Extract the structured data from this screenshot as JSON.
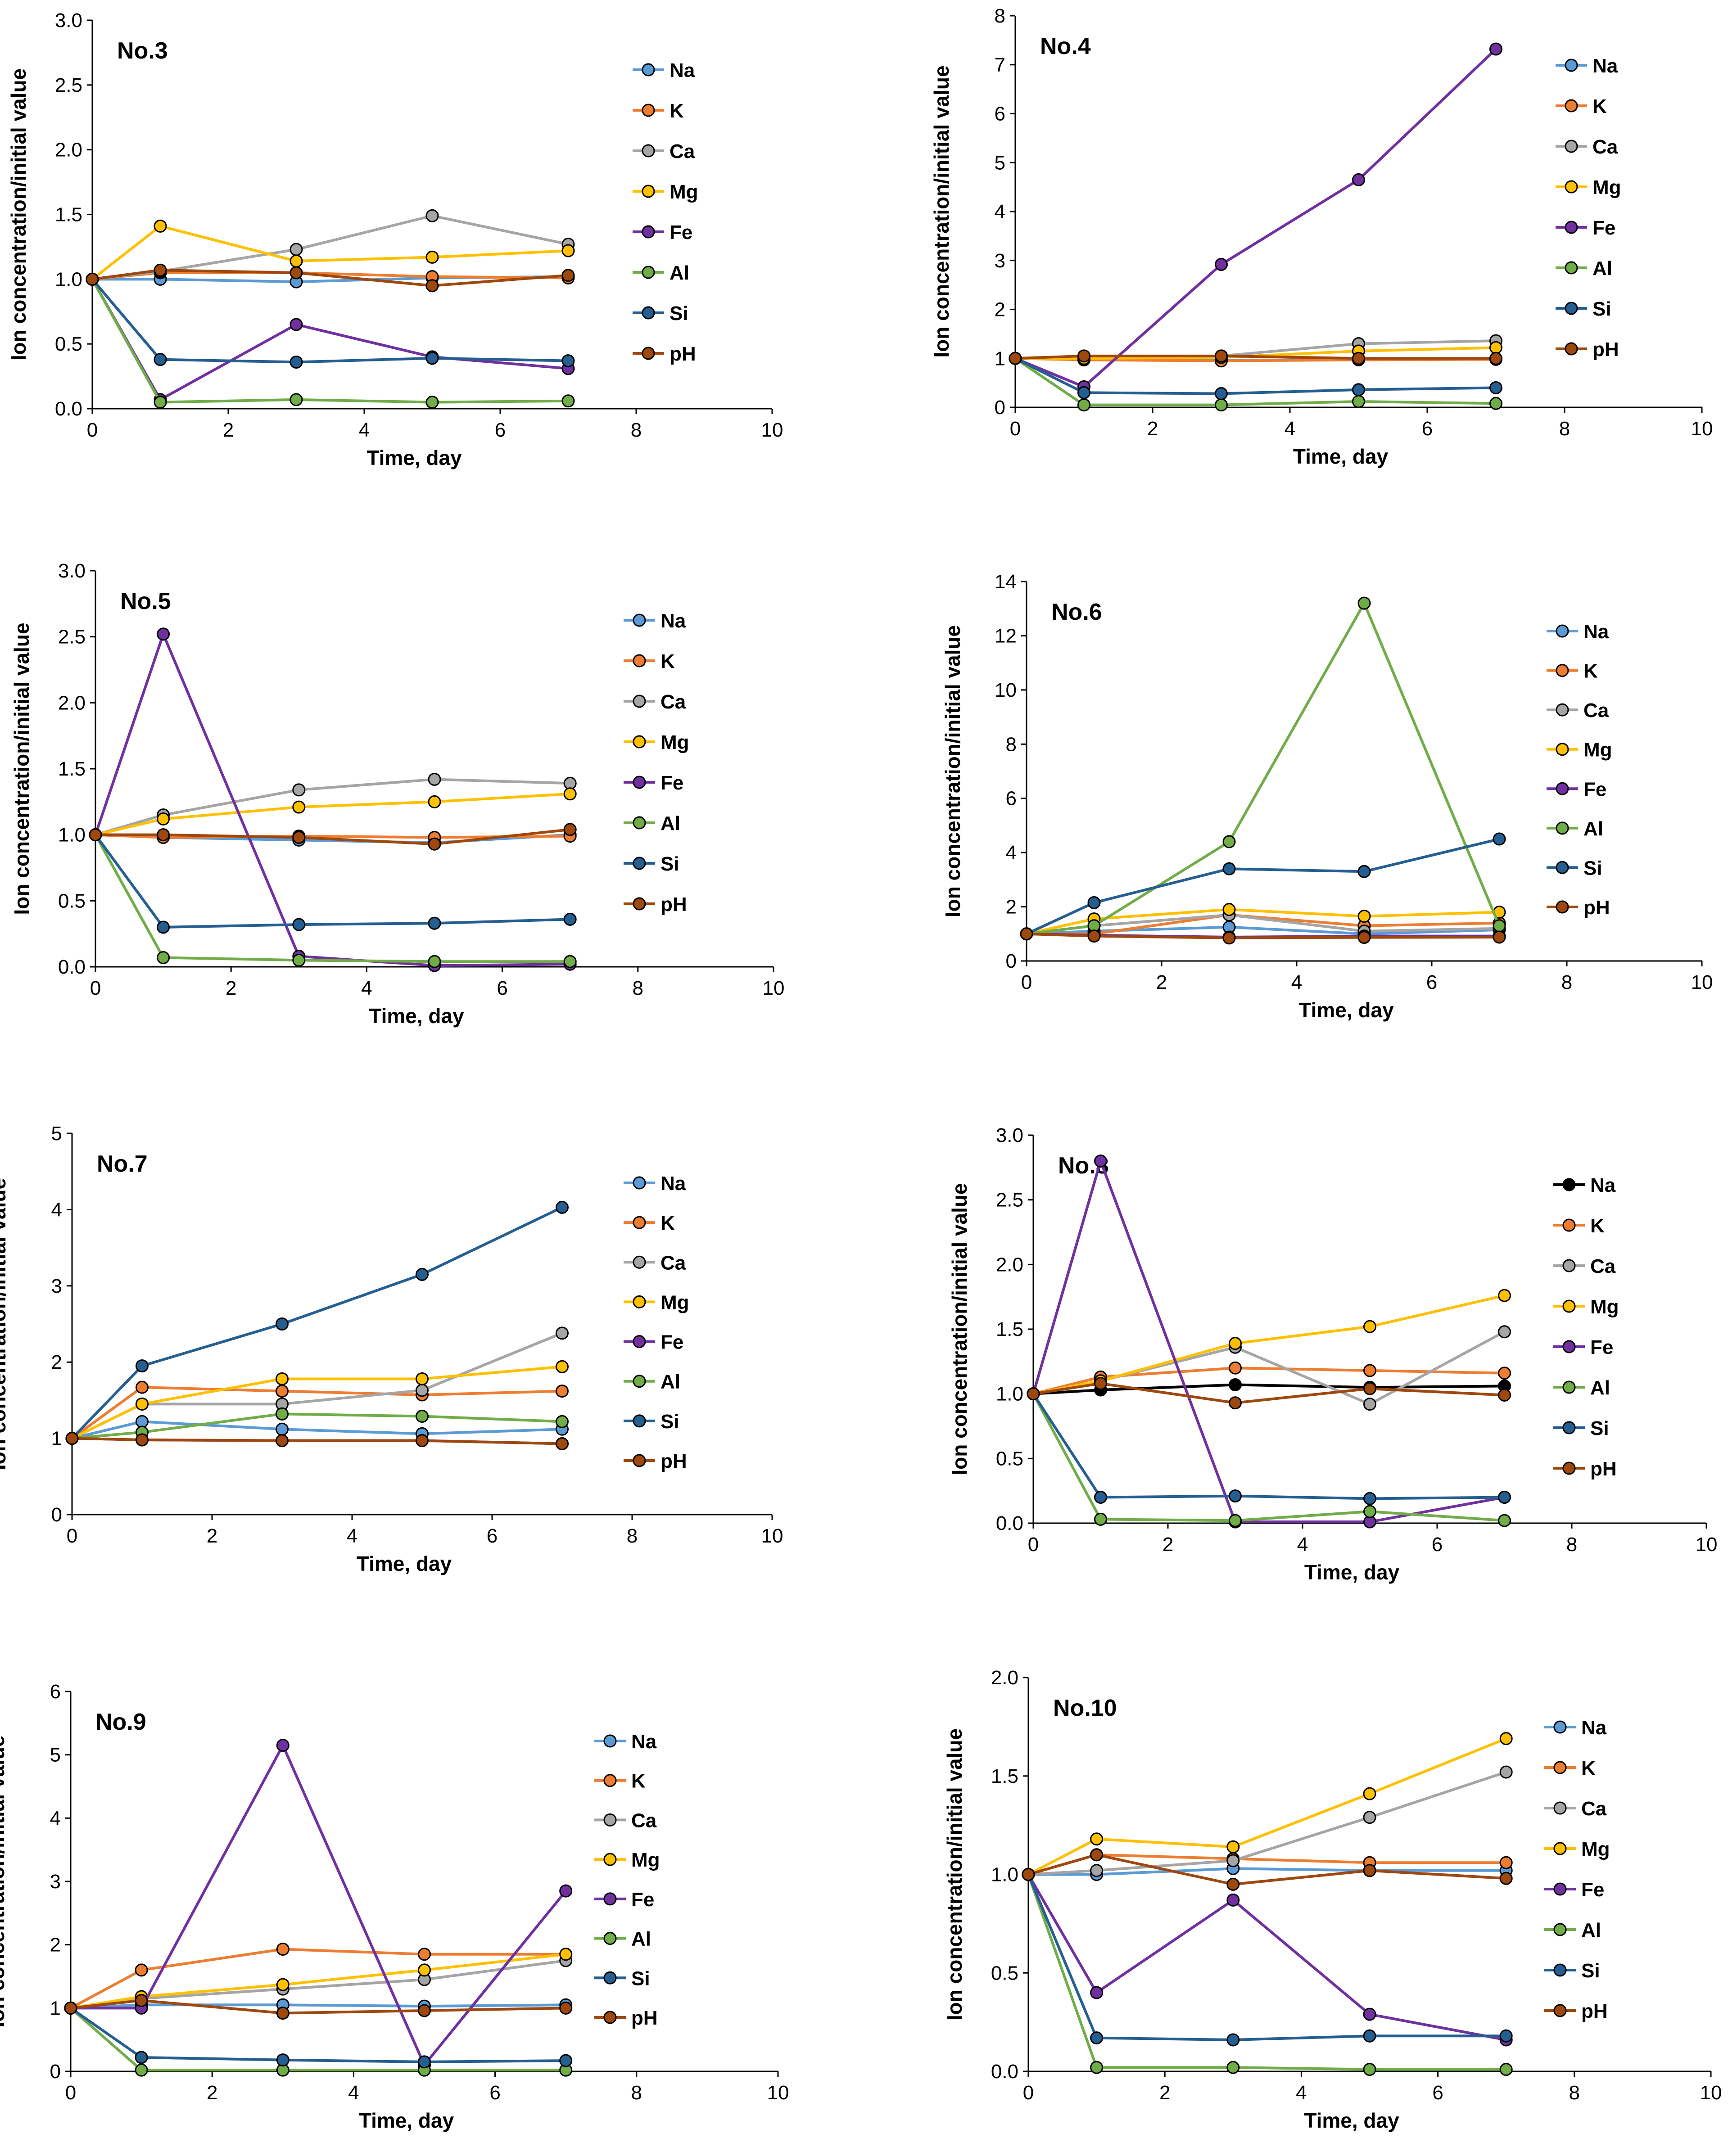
{
  "figure": {
    "series_names": [
      "Na",
      "K",
      "Ca",
      "Mg",
      "Fe",
      "Al",
      "Si",
      "pH"
    ],
    "colors": {
      "Na": "#5B9BD5",
      "K": "#ED7D31",
      "Ca": "#A5A5A5",
      "Mg": "#FFC000",
      "Fe": "#7030A0",
      "Al": "#70AD47",
      "Si": "#255E91",
      "pH": "#9E480E",
      "Na_panel8": "#000000"
    }
  },
  "chart_data": [
    {
      "type": "line",
      "title": "No.3",
      "xlabel": "Time, day",
      "ylabel": "Ion concentration/initial value",
      "xlim": [
        0,
        10
      ],
      "ylim": [
        0,
        3
      ],
      "xticks": [
        "0",
        "2",
        "4",
        "6",
        "8",
        "10"
      ],
      "yticks": [
        "0.0",
        "0.5",
        "1.0",
        "1.5",
        "2.0",
        "2.5",
        "3.0"
      ],
      "x": [
        0,
        1,
        3,
        5,
        7
      ],
      "series": [
        {
          "name": "Na",
          "values": [
            1.0,
            1.0,
            0.98,
            1.01,
            1.02
          ]
        },
        {
          "name": "K",
          "values": [
            1.0,
            1.05,
            1.05,
            1.02,
            1.01
          ]
        },
        {
          "name": "Ca",
          "values": [
            1.0,
            1.06,
            1.23,
            1.49,
            1.27
          ]
        },
        {
          "name": "Mg",
          "values": [
            1.0,
            1.41,
            1.14,
            1.17,
            1.22
          ]
        },
        {
          "name": "Fe",
          "values": [
            1.0,
            0.07,
            0.65,
            0.4,
            0.31
          ]
        },
        {
          "name": "Al",
          "values": [
            1.0,
            0.05,
            0.07,
            0.05,
            0.06
          ]
        },
        {
          "name": "Si",
          "values": [
            1.0,
            0.38,
            0.36,
            0.39,
            0.37
          ]
        },
        {
          "name": "pH",
          "values": [
            1.0,
            1.07,
            1.05,
            0.95,
            1.03
          ]
        }
      ]
    },
    {
      "type": "line",
      "title": "No.4",
      "xlabel": "Time, day",
      "ylabel": "Ion concentration/initial value",
      "xlim": [
        0,
        10
      ],
      "ylim": [
        0,
        8
      ],
      "xticks": [
        "0",
        "2",
        "4",
        "6",
        "8",
        "10"
      ],
      "yticks": [
        "0",
        "1",
        "2",
        "3",
        "4",
        "5",
        "6",
        "7",
        "8"
      ],
      "x": [
        0,
        1,
        3,
        5,
        7
      ],
      "series": [
        {
          "name": "Na",
          "values": [
            1.0,
            0.98,
            0.96,
            0.98,
            1.0
          ]
        },
        {
          "name": "K",
          "values": [
            1.0,
            0.97,
            0.95,
            0.97,
            0.98
          ]
        },
        {
          "name": "Ca",
          "values": [
            1.0,
            1.02,
            1.05,
            1.3,
            1.36
          ]
        },
        {
          "name": "Mg",
          "values": [
            1.0,
            1.0,
            1.02,
            1.15,
            1.22
          ]
        },
        {
          "name": "Fe",
          "values": [
            1.0,
            0.42,
            2.92,
            4.65,
            7.32
          ]
        },
        {
          "name": "Al",
          "values": [
            1.0,
            0.05,
            0.05,
            0.12,
            0.08
          ]
        },
        {
          "name": "Si",
          "values": [
            1.0,
            0.3,
            0.28,
            0.36,
            0.4
          ]
        },
        {
          "name": "pH",
          "values": [
            1.0,
            1.05,
            1.05,
            1.0,
            1.0
          ]
        }
      ]
    },
    {
      "type": "line",
      "title": "No.5",
      "xlabel": "Time, day",
      "ylabel": "Ion concentration/initial value",
      "xlim": [
        0,
        10
      ],
      "ylim": [
        0,
        3
      ],
      "xticks": [
        "0",
        "2",
        "4",
        "6",
        "8",
        "10"
      ],
      "yticks": [
        "0.0",
        "0.5",
        "1.0",
        "1.5",
        "2.0",
        "2.5",
        "3.0"
      ],
      "x": [
        0,
        1,
        3,
        5,
        7
      ],
      "series": [
        {
          "name": "Na",
          "values": [
            1.0,
            0.98,
            0.96,
            0.94,
            1.0
          ]
        },
        {
          "name": "K",
          "values": [
            1.0,
            0.98,
            0.99,
            0.98,
            0.99
          ]
        },
        {
          "name": "Ca",
          "values": [
            1.0,
            1.15,
            1.34,
            1.42,
            1.39
          ]
        },
        {
          "name": "Mg",
          "values": [
            1.0,
            1.12,
            1.21,
            1.25,
            1.31
          ]
        },
        {
          "name": "Fe",
          "values": [
            1.0,
            2.52,
            0.08,
            0.01,
            0.02
          ]
        },
        {
          "name": "Al",
          "values": [
            1.0,
            0.07,
            0.05,
            0.04,
            0.04
          ]
        },
        {
          "name": "Si",
          "values": [
            1.0,
            0.3,
            0.32,
            0.33,
            0.36
          ]
        },
        {
          "name": "pH",
          "values": [
            1.0,
            1.0,
            0.98,
            0.93,
            1.04
          ]
        }
      ]
    },
    {
      "type": "line",
      "title": "No.6",
      "xlabel": "Time, day",
      "ylabel": "Ion concentration/initial value",
      "xlim": [
        0,
        10
      ],
      "ylim": [
        0,
        14
      ],
      "xticks": [
        "0",
        "2",
        "4",
        "6",
        "8",
        "10"
      ],
      "yticks": [
        "0",
        "2",
        "4",
        "6",
        "8",
        "10",
        "12",
        "14"
      ],
      "x": [
        0,
        1,
        3,
        5,
        7
      ],
      "series": [
        {
          "name": "Na",
          "values": [
            1.0,
            1.1,
            1.25,
            1.0,
            1.15
          ]
        },
        {
          "name": "K",
          "values": [
            1.0,
            1.0,
            1.7,
            1.3,
            1.4
          ]
        },
        {
          "name": "Ca",
          "values": [
            1.0,
            1.3,
            1.7,
            1.1,
            1.2
          ]
        },
        {
          "name": "Mg",
          "values": [
            1.0,
            1.55,
            1.9,
            1.65,
            1.8
          ]
        },
        {
          "name": "Fe",
          "values": [
            1.0,
            0.95,
            0.88,
            0.92,
            0.92
          ]
        },
        {
          "name": "Al",
          "values": [
            1.0,
            1.3,
            4.4,
            13.2,
            1.3
          ]
        },
        {
          "name": "Si",
          "values": [
            1.0,
            2.15,
            3.4,
            3.3,
            4.5
          ]
        },
        {
          "name": "pH",
          "values": [
            1.0,
            0.92,
            0.85,
            0.87,
            0.88
          ]
        }
      ]
    },
    {
      "type": "line",
      "title": "No.7",
      "xlabel": "Time, day",
      "ylabel": "Ion concentration/initial value",
      "xlim": [
        0,
        10
      ],
      "ylim": [
        0,
        5
      ],
      "xticks": [
        "0",
        "2",
        "4",
        "6",
        "8",
        "10"
      ],
      "yticks": [
        "0",
        "1",
        "2",
        "3",
        "4",
        "5"
      ],
      "x": [
        0,
        1,
        3,
        5,
        7
      ],
      "series": [
        {
          "name": "Na",
          "values": [
            1.0,
            1.22,
            1.12,
            1.06,
            1.12
          ]
        },
        {
          "name": "K",
          "values": [
            1.0,
            1.67,
            1.62,
            1.57,
            1.62
          ]
        },
        {
          "name": "Ca",
          "values": [
            1.0,
            1.45,
            1.45,
            1.63,
            2.38
          ]
        },
        {
          "name": "Mg",
          "values": [
            1.0,
            1.45,
            1.78,
            1.78,
            1.94
          ]
        },
        {
          "name": "Fe",
          "values": [
            1.0,
            0.98,
            0.97,
            0.97,
            0.93
          ]
        },
        {
          "name": "Al",
          "values": [
            1.0,
            1.08,
            1.32,
            1.29,
            1.22
          ]
        },
        {
          "name": "Si",
          "values": [
            1.0,
            1.95,
            2.5,
            3.15,
            4.03
          ]
        },
        {
          "name": "pH",
          "values": [
            1.0,
            0.98,
            0.97,
            0.97,
            0.93
          ]
        }
      ]
    },
    {
      "type": "line",
      "title": "No.8",
      "xlabel": "Time, day",
      "ylabel": "Ion concentration/initial value",
      "xlim": [
        0,
        10
      ],
      "ylim": [
        0,
        3
      ],
      "xticks": [
        "0",
        "2",
        "4",
        "6",
        "8",
        "10"
      ],
      "yticks": [
        "0.0",
        "0.5",
        "1.0",
        "1.5",
        "2.0",
        "2.5",
        "3.0"
      ],
      "x": [
        0,
        1,
        3,
        5,
        7
      ],
      "series": [
        {
          "name": "Na",
          "values": [
            1.0,
            1.03,
            1.07,
            1.05,
            1.06
          ]
        },
        {
          "name": "K",
          "values": [
            1.0,
            1.13,
            1.2,
            1.18,
            1.16
          ]
        },
        {
          "name": "Ca",
          "values": [
            1.0,
            1.1,
            1.36,
            0.92,
            1.48
          ]
        },
        {
          "name": "Mg",
          "values": [
            1.0,
            1.1,
            1.39,
            1.52,
            1.76
          ]
        },
        {
          "name": "Fe",
          "values": [
            1.0,
            2.8,
            0.01,
            0.01,
            0.2
          ]
        },
        {
          "name": "Al",
          "values": [
            1.0,
            0.03,
            0.02,
            0.09,
            0.02
          ]
        },
        {
          "name": "Si",
          "values": [
            1.0,
            0.2,
            0.21,
            0.19,
            0.2
          ]
        },
        {
          "name": "pH",
          "values": [
            1.0,
            1.08,
            0.93,
            1.04,
            0.99
          ]
        }
      ]
    },
    {
      "type": "line",
      "title": "No.9",
      "xlabel": "Time, day",
      "ylabel": "Ion concentration/initial value",
      "xlim": [
        0,
        10
      ],
      "ylim": [
        0,
        6
      ],
      "xticks": [
        "0",
        "2",
        "4",
        "6",
        "8",
        "10"
      ],
      "yticks": [
        "0",
        "1",
        "2",
        "3",
        "4",
        "5",
        "6"
      ],
      "x": [
        0,
        1,
        3,
        5,
        7
      ],
      "series": [
        {
          "name": "Na",
          "values": [
            1.0,
            1.05,
            1.05,
            1.03,
            1.05
          ]
        },
        {
          "name": "K",
          "values": [
            1.0,
            1.6,
            1.93,
            1.85,
            1.85
          ]
        },
        {
          "name": "Ca",
          "values": [
            1.0,
            1.15,
            1.3,
            1.45,
            1.75
          ]
        },
        {
          "name": "Mg",
          "values": [
            1.0,
            1.18,
            1.37,
            1.6,
            1.85
          ]
        },
        {
          "name": "Fe",
          "values": [
            1.0,
            1.0,
            5.15,
            0.1,
            2.85
          ]
        },
        {
          "name": "Al",
          "values": [
            1.0,
            0.02,
            0.02,
            0.02,
            0.02
          ]
        },
        {
          "name": "Si",
          "values": [
            1.0,
            0.22,
            0.18,
            0.15,
            0.17
          ]
        },
        {
          "name": "pH",
          "values": [
            1.0,
            1.12,
            0.92,
            0.96,
            1.0
          ]
        }
      ]
    },
    {
      "type": "line",
      "title": "No.10",
      "xlabel": "Time, day",
      "ylabel": "Ion concentration/initial value",
      "xlim": [
        0,
        10
      ],
      "ylim": [
        0,
        2
      ],
      "xticks": [
        "0",
        "2",
        "4",
        "6",
        "8",
        "10"
      ],
      "yticks": [
        "0.0",
        "0.5",
        "1.0",
        "1.5",
        "2.0"
      ],
      "x": [
        0,
        1,
        3,
        5,
        7
      ],
      "series": [
        {
          "name": "Na",
          "values": [
            1.0,
            1.0,
            1.03,
            1.02,
            1.02
          ]
        },
        {
          "name": "K",
          "values": [
            1.0,
            1.1,
            1.08,
            1.06,
            1.06
          ]
        },
        {
          "name": "Ca",
          "values": [
            1.0,
            1.02,
            1.07,
            1.29,
            1.52
          ]
        },
        {
          "name": "Mg",
          "values": [
            1.0,
            1.18,
            1.14,
            1.41,
            1.69
          ]
        },
        {
          "name": "Fe",
          "values": [
            1.0,
            0.4,
            0.87,
            0.29,
            0.16
          ]
        },
        {
          "name": "Al",
          "values": [
            1.0,
            0.02,
            0.02,
            0.01,
            0.01
          ]
        },
        {
          "name": "Si",
          "values": [
            1.0,
            0.17,
            0.16,
            0.18,
            0.18
          ]
        },
        {
          "name": "pH",
          "values": [
            1.0,
            1.1,
            0.95,
            1.02,
            0.98
          ]
        }
      ]
    }
  ]
}
